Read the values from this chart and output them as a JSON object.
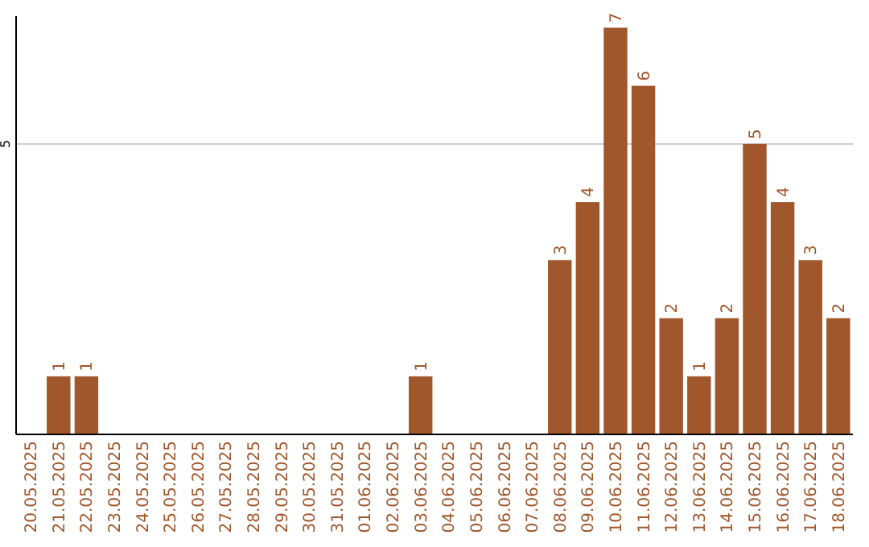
{
  "chart_data": {
    "type": "bar",
    "categories": [
      "20.05.2025",
      "21.05.2025",
      "22.05.2025",
      "23.05.2025",
      "24.05.2025",
      "25.05.2025",
      "26.05.2025",
      "27.05.2025",
      "28.05.2025",
      "29.05.2025",
      "30.05.2025",
      "31.05.2025",
      "01.06.2025",
      "02.06.2025",
      "03.06.2025",
      "04.06.2025",
      "05.06.2025",
      "06.06.2025",
      "07.06.2025",
      "08.06.2025",
      "09.06.2025",
      "10.06.2025",
      "11.06.2025",
      "12.06.2025",
      "13.06.2025",
      "14.06.2025",
      "15.06.2025",
      "16.06.2025",
      "17.06.2025",
      "18.06.2025"
    ],
    "values": [
      0,
      1,
      1,
      0,
      0,
      0,
      0,
      0,
      0,
      0,
      0,
      0,
      0,
      0,
      1,
      0,
      0,
      0,
      0,
      3,
      4,
      7,
      6,
      2,
      1,
      2,
      5,
      4,
      3,
      2
    ],
    "value_labels": [
      null,
      "1",
      "1",
      null,
      null,
      null,
      null,
      null,
      null,
      null,
      null,
      null,
      null,
      null,
      "1",
      null,
      null,
      null,
      null,
      "3",
      "4",
      "7",
      "6",
      "2",
      "1",
      "2",
      "5",
      "4",
      "3",
      "2"
    ],
    "color": "#a0572b",
    "ylim": [
      0,
      7.2
    ],
    "yticks": [
      5
    ],
    "grid": "y"
  }
}
